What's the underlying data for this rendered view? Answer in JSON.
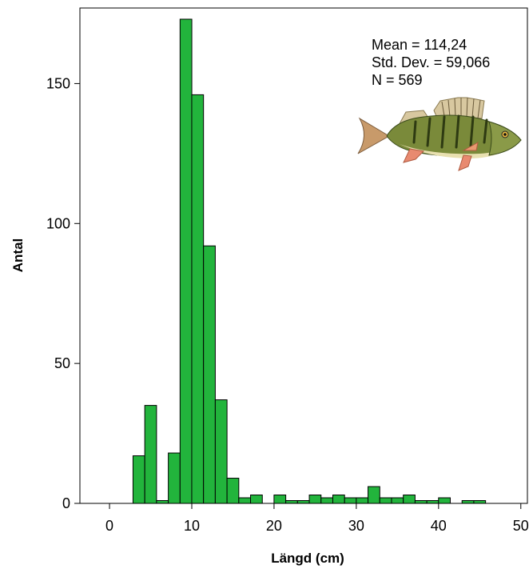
{
  "chart_data": {
    "type": "bar",
    "xlabel": "Längd (cm)",
    "ylabel": "Antal",
    "xlim": [
      -3.6,
      50.8
    ],
    "ylim": [
      0,
      177
    ],
    "bin_width": 1.43,
    "x_ticks": [
      0,
      10,
      20,
      30,
      40,
      50
    ],
    "y_ticks": [
      0,
      50,
      100,
      150
    ],
    "bar_color": "#22b43c",
    "bar_edge_color": "#000000",
    "bins": [
      {
        "x": 3.57,
        "value": 17
      },
      {
        "x": 5.0,
        "value": 35
      },
      {
        "x": 6.43,
        "value": 1
      },
      {
        "x": 7.86,
        "value": 18
      },
      {
        "x": 9.29,
        "value": 173
      },
      {
        "x": 10.71,
        "value": 146
      },
      {
        "x": 12.14,
        "value": 92
      },
      {
        "x": 13.57,
        "value": 37
      },
      {
        "x": 15.0,
        "value": 9
      },
      {
        "x": 16.43,
        "value": 2
      },
      {
        "x": 17.86,
        "value": 3
      },
      {
        "x": 19.29,
        "value": 0
      },
      {
        "x": 20.71,
        "value": 3
      },
      {
        "x": 22.14,
        "value": 1
      },
      {
        "x": 23.57,
        "value": 1
      },
      {
        "x": 25.0,
        "value": 3
      },
      {
        "x": 26.43,
        "value": 2
      },
      {
        "x": 27.86,
        "value": 3
      },
      {
        "x": 29.29,
        "value": 2
      },
      {
        "x": 30.71,
        "value": 2
      },
      {
        "x": 32.14,
        "value": 6
      },
      {
        "x": 33.57,
        "value": 2
      },
      {
        "x": 35.0,
        "value": 2
      },
      {
        "x": 36.43,
        "value": 3
      },
      {
        "x": 37.86,
        "value": 1
      },
      {
        "x": 39.29,
        "value": 1
      },
      {
        "x": 40.71,
        "value": 2
      },
      {
        "x": 42.14,
        "value": 0
      },
      {
        "x": 43.57,
        "value": 1
      },
      {
        "x": 45.0,
        "value": 1
      }
    ],
    "stats": [
      "Mean = 114,24",
      "Std. Dev. = 59,066",
      "N = 569"
    ],
    "image": "perch-fish"
  }
}
